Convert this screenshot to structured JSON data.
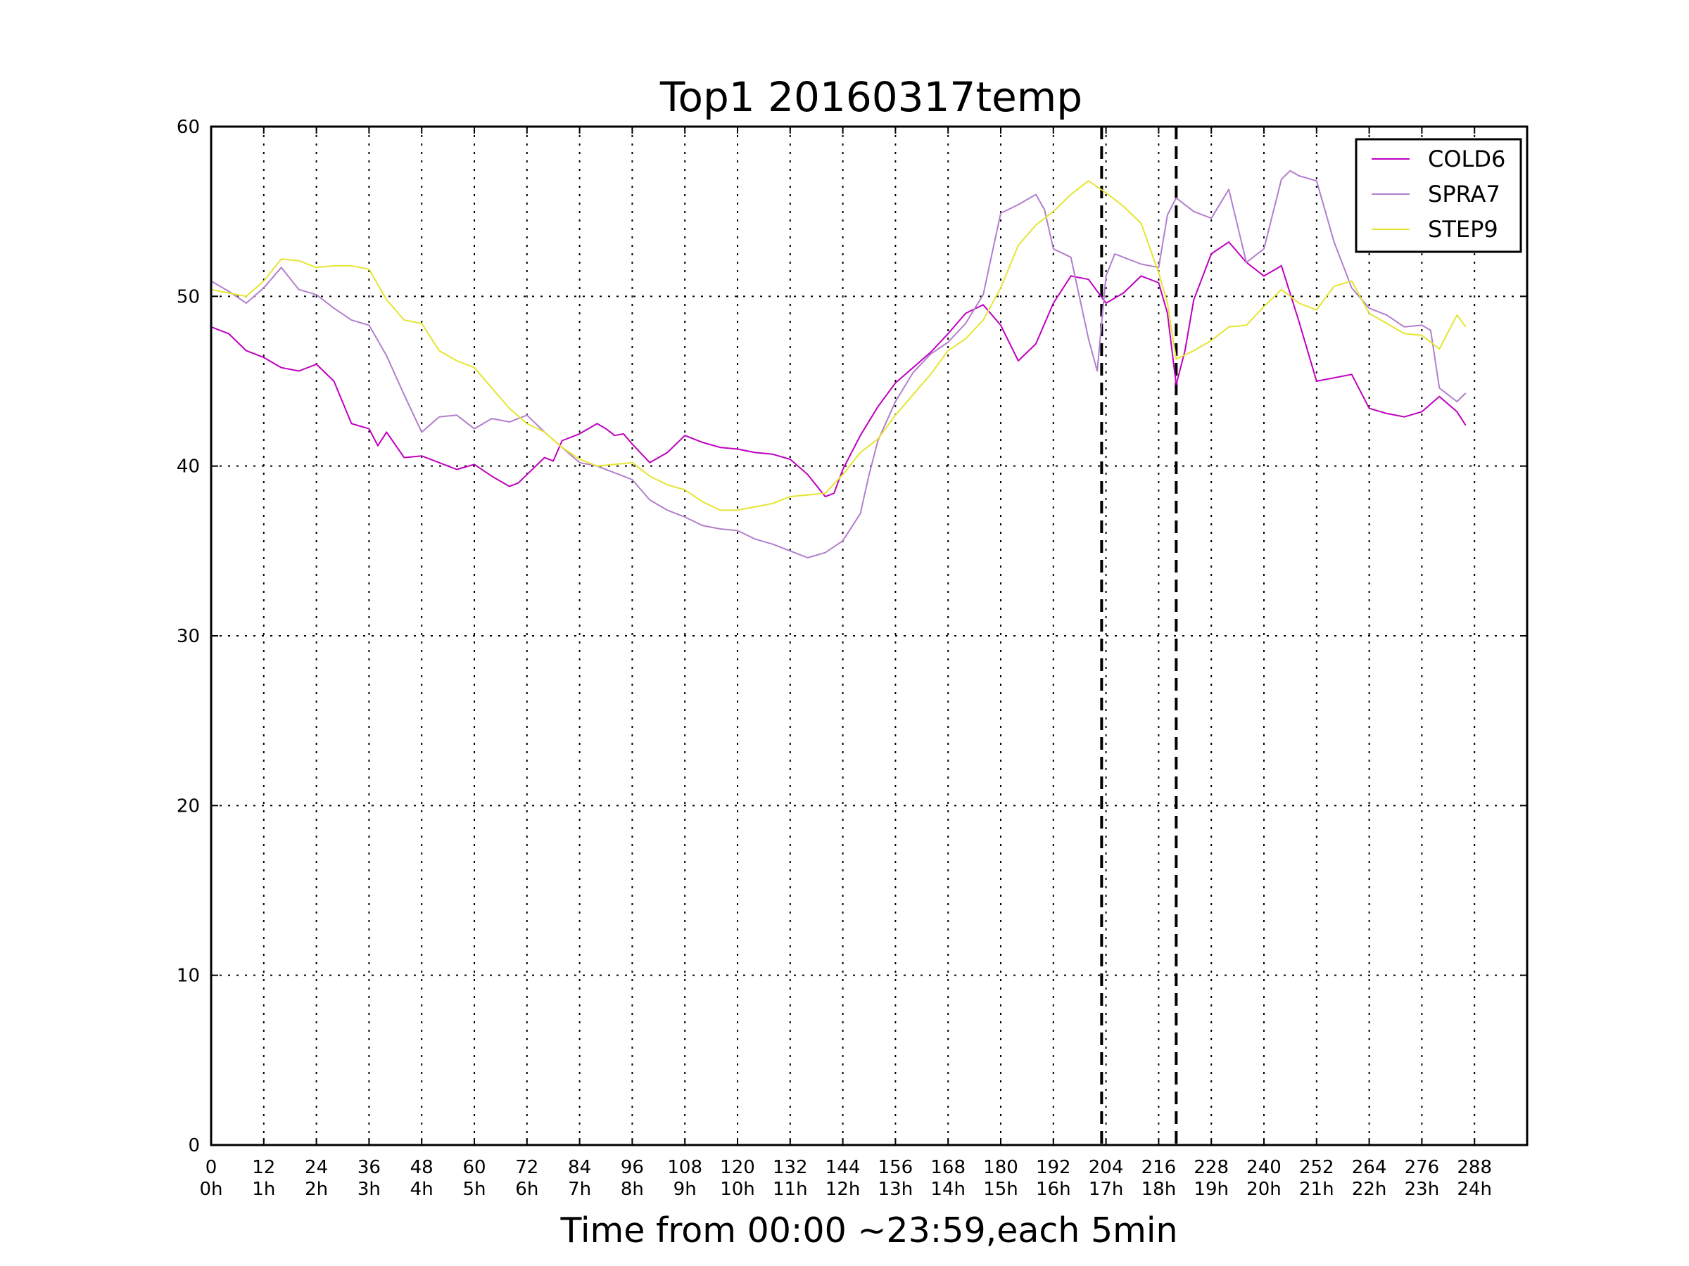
{
  "chart_data": {
    "type": "line",
    "title": "Top1 20160317temp",
    "xlabel": "Time from 00:00 ~23:59,each 5min",
    "ylabel": "",
    "xlim": [
      0,
      300
    ],
    "ylim": [
      0,
      60
    ],
    "grid": true,
    "legend_position": "top-right",
    "x_ticks": [
      0,
      12,
      24,
      36,
      48,
      60,
      72,
      84,
      96,
      108,
      120,
      132,
      144,
      156,
      168,
      180,
      192,
      204,
      216,
      228,
      240,
      252,
      264,
      276,
      288
    ],
    "x_tick_labels": [
      "0",
      "12",
      "24",
      "36",
      "48",
      "60",
      "72",
      "84",
      "96",
      "108",
      "120",
      "132",
      "144",
      "156",
      "168",
      "180",
      "192",
      "204",
      "216",
      "228",
      "240",
      "252",
      "264",
      "276",
      "288"
    ],
    "x_tick_sublabels": [
      "0h",
      "1h",
      "2h",
      "3h",
      "4h",
      "5h",
      "6h",
      "7h",
      "8h",
      "9h",
      "10h",
      "11h",
      "12h",
      "13h",
      "14h",
      "15h",
      "16h",
      "17h",
      "18h",
      "19h",
      "20h",
      "21h",
      "22h",
      "23h",
      "24h"
    ],
    "y_ticks": [
      0,
      10,
      20,
      30,
      40,
      50,
      60
    ],
    "y_tick_labels": [
      "0",
      "10",
      "20",
      "30",
      "40",
      "50",
      "60"
    ],
    "vlines": [
      {
        "x": 203,
        "style": "dashed",
        "color": "#000000"
      },
      {
        "x": 220,
        "style": "dashed",
        "color": "#000000"
      }
    ],
    "series": [
      {
        "name": "COLD6",
        "color": "#BF00BF",
        "x": [
          0,
          4,
          8,
          12,
          16,
          20,
          24,
          28,
          32,
          36,
          38,
          40,
          44,
          48,
          52,
          56,
          60,
          64,
          68,
          70,
          72,
          76,
          78,
          80,
          84,
          88,
          90,
          92,
          94,
          96,
          100,
          104,
          108,
          112,
          116,
          120,
          124,
          128,
          132,
          136,
          140,
          142,
          144,
          148,
          152,
          156,
          160,
          164,
          168,
          172,
          176,
          180,
          184,
          188,
          192,
          196,
          200,
          204,
          208,
          212,
          216,
          218,
          220,
          222,
          224,
          228,
          232,
          236,
          240,
          244,
          248,
          252,
          256,
          260,
          264,
          268,
          272,
          276,
          280,
          284,
          286
        ],
        "y": [
          48.2,
          47.8,
          46.8,
          46.4,
          45.8,
          45.6,
          46.0,
          45.0,
          42.5,
          42.2,
          41.2,
          42.0,
          40.5,
          40.6,
          40.2,
          39.8,
          40.1,
          39.4,
          38.8,
          39.0,
          39.5,
          40.5,
          40.3,
          41.5,
          41.9,
          42.5,
          42.2,
          41.8,
          41.9,
          41.3,
          40.2,
          40.8,
          41.8,
          41.4,
          41.1,
          41.0,
          40.8,
          40.7,
          40.4,
          39.5,
          38.2,
          38.4,
          39.8,
          41.8,
          43.5,
          44.9,
          45.8,
          46.7,
          47.8,
          49.0,
          49.5,
          48.3,
          46.2,
          47.2,
          49.6,
          51.2,
          51.0,
          49.6,
          50.2,
          51.2,
          50.8,
          49.0,
          44.8,
          46.8,
          49.8,
          52.5,
          53.2,
          52.0,
          51.2,
          51.8,
          48.5,
          45.0,
          45.2,
          45.4,
          43.4,
          43.1,
          42.9,
          43.2,
          44.1,
          43.2,
          42.4
        ]
      },
      {
        "name": "SPRA7",
        "color": "#B27FCC",
        "x": [
          0,
          4,
          8,
          12,
          16,
          20,
          24,
          28,
          32,
          36,
          40,
          44,
          48,
          52,
          56,
          60,
          64,
          68,
          72,
          76,
          80,
          84,
          88,
          92,
          96,
          100,
          104,
          108,
          112,
          116,
          120,
          124,
          128,
          132,
          136,
          140,
          144,
          148,
          150,
          152,
          156,
          160,
          164,
          168,
          172,
          176,
          178,
          180,
          184,
          188,
          190,
          192,
          196,
          200,
          202,
          204,
          206,
          208,
          212,
          216,
          218,
          220,
          224,
          228,
          232,
          236,
          240,
          244,
          246,
          248,
          252,
          256,
          260,
          264,
          268,
          272,
          276,
          278,
          280,
          284,
          286
        ],
        "y": [
          50.9,
          50.3,
          49.6,
          50.5,
          51.7,
          50.4,
          50.1,
          49.3,
          48.6,
          48.3,
          46.5,
          44.2,
          42.0,
          42.9,
          43.0,
          42.2,
          42.8,
          42.6,
          43.0,
          42.0,
          41.1,
          40.2,
          40.0,
          39.6,
          39.2,
          38.0,
          37.4,
          37.0,
          36.5,
          36.3,
          36.2,
          35.7,
          35.4,
          35.0,
          34.6,
          34.9,
          35.6,
          37.2,
          39.5,
          41.5,
          43.8,
          45.5,
          46.6,
          47.3,
          48.4,
          50.1,
          52.5,
          54.9,
          55.4,
          56.0,
          55.1,
          52.8,
          52.3,
          47.5,
          45.6,
          51.2,
          52.5,
          52.3,
          51.9,
          51.7,
          54.8,
          55.8,
          55.0,
          54.6,
          56.3,
          52.0,
          52.8,
          56.9,
          57.4,
          57.1,
          56.8,
          53.2,
          50.5,
          49.3,
          48.9,
          48.2,
          48.3,
          48.0,
          44.6,
          43.8,
          44.3
        ]
      },
      {
        "name": "STEP9",
        "color": "#E5E533",
        "x": [
          0,
          4,
          8,
          12,
          16,
          20,
          24,
          28,
          32,
          36,
          40,
          44,
          48,
          52,
          56,
          60,
          64,
          68,
          72,
          76,
          80,
          84,
          88,
          92,
          96,
          100,
          104,
          108,
          112,
          116,
          120,
          124,
          128,
          132,
          136,
          140,
          144,
          148,
          152,
          156,
          160,
          164,
          168,
          172,
          176,
          180,
          184,
          188,
          192,
          196,
          200,
          204,
          208,
          212,
          216,
          218,
          220,
          224,
          228,
          232,
          236,
          240,
          244,
          248,
          252,
          256,
          260,
          264,
          268,
          272,
          276,
          280,
          284,
          286
        ],
        "y": [
          50.4,
          50.2,
          50.0,
          50.9,
          52.2,
          52.1,
          51.7,
          51.8,
          51.8,
          51.6,
          49.8,
          48.6,
          48.4,
          46.8,
          46.2,
          45.8,
          44.6,
          43.4,
          42.5,
          42.0,
          41.1,
          40.4,
          40.0,
          40.1,
          40.2,
          39.4,
          38.9,
          38.6,
          37.9,
          37.4,
          37.4,
          37.6,
          37.8,
          38.2,
          38.3,
          38.4,
          39.5,
          40.8,
          41.6,
          43.0,
          44.2,
          45.4,
          46.8,
          47.5,
          48.6,
          50.5,
          53.0,
          54.2,
          55.0,
          56.0,
          56.8,
          56.1,
          55.3,
          54.3,
          51.4,
          49.6,
          46.3,
          46.8,
          47.4,
          48.2,
          48.3,
          49.4,
          50.4,
          49.6,
          49.2,
          50.6,
          50.9,
          49.0,
          48.4,
          47.8,
          47.7,
          46.9,
          48.9,
          48.2
        ]
      }
    ]
  }
}
